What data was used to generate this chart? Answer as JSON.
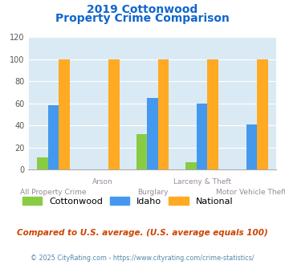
{
  "title_line1": "2019 Cottonwood",
  "title_line2": "Property Crime Comparison",
  "categories": [
    "All Property Crime",
    "Arson",
    "Burglary",
    "Larceny & Theft",
    "Motor Vehicle Theft"
  ],
  "cottonwood": [
    11,
    0,
    32,
    7,
    0
  ],
  "idaho": [
    58,
    0,
    65,
    60,
    41
  ],
  "national": [
    100,
    100,
    100,
    100,
    100
  ],
  "color_cottonwood": "#88cc44",
  "color_idaho": "#4499ee",
  "color_national": "#ffaa22",
  "ylim": [
    0,
    120
  ],
  "yticks": [
    0,
    20,
    40,
    60,
    80,
    100,
    120
  ],
  "plot_bg": "#daeaf4",
  "title_color": "#1166cc",
  "xlabel_color": "#998899",
  "legend_labels": [
    "Cottonwood",
    "Idaho",
    "National"
  ],
  "footer_text": "Compared to U.S. average. (U.S. average equals 100)",
  "copyright_text": "© 2025 CityRating.com - https://www.cityrating.com/crime-statistics/",
  "footer_color": "#cc4400",
  "copyright_color": "#5588aa",
  "bar_width": 0.22
}
